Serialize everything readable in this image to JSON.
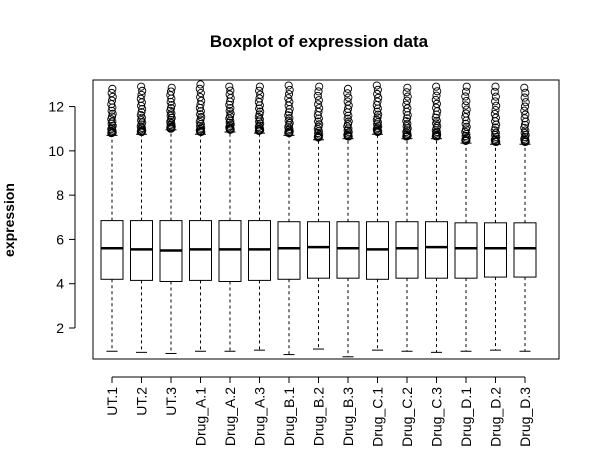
{
  "chart_data": {
    "type": "boxplot",
    "title": "Boxplot of expression data",
    "xlabel": "",
    "ylabel": "expression",
    "ylim": [
      0.6,
      13.2
    ],
    "yticks": [
      2,
      4,
      6,
      8,
      10,
      12
    ],
    "grid": false,
    "colors": {
      "box_fill": "#ffffff",
      "stroke": "#000000"
    },
    "categories": [
      "UT.1",
      "UT.2",
      "UT.3",
      "Drug_A.1",
      "Drug_A.2",
      "Drug_A.3",
      "Drug_B.1",
      "Drug_B.2",
      "Drug_B.3",
      "Drug_C.1",
      "Drug_C.2",
      "Drug_C.3",
      "Drug_D.1",
      "Drug_D.2",
      "Drug_D.3"
    ],
    "boxes": [
      {
        "min": 0.95,
        "q1": 4.2,
        "median": 5.6,
        "q3": 6.85,
        "whisker_high": 10.7,
        "outliers_low": 10.8,
        "outliers_high": 12.8
      },
      {
        "min": 0.9,
        "q1": 4.15,
        "median": 5.55,
        "q3": 6.85,
        "whisker_high": 10.75,
        "outliers_low": 10.85,
        "outliers_high": 12.9
      },
      {
        "min": 0.85,
        "q1": 4.1,
        "median": 5.5,
        "q3": 6.85,
        "whisker_high": 10.95,
        "outliers_low": 11.0,
        "outliers_high": 12.85
      },
      {
        "min": 0.95,
        "q1": 4.15,
        "median": 5.55,
        "q3": 6.85,
        "whisker_high": 10.75,
        "outliers_low": 10.85,
        "outliers_high": 13.0
      },
      {
        "min": 0.95,
        "q1": 4.1,
        "median": 5.55,
        "q3": 6.85,
        "whisker_high": 10.85,
        "outliers_low": 10.95,
        "outliers_high": 12.9
      },
      {
        "min": 1.0,
        "q1": 4.15,
        "median": 5.55,
        "q3": 6.85,
        "whisker_high": 10.8,
        "outliers_low": 10.9,
        "outliers_high": 12.9
      },
      {
        "min": 0.8,
        "q1": 4.2,
        "median": 5.6,
        "q3": 6.8,
        "whisker_high": 10.7,
        "outliers_low": 10.8,
        "outliers_high": 12.95
      },
      {
        "min": 1.05,
        "q1": 4.25,
        "median": 5.65,
        "q3": 6.8,
        "whisker_high": 10.5,
        "outliers_low": 10.6,
        "outliers_high": 12.9
      },
      {
        "min": 0.7,
        "q1": 4.25,
        "median": 5.6,
        "q3": 6.8,
        "whisker_high": 10.55,
        "outliers_low": 10.65,
        "outliers_high": 12.8
      },
      {
        "min": 1.0,
        "q1": 4.2,
        "median": 5.55,
        "q3": 6.8,
        "whisker_high": 10.75,
        "outliers_low": 10.85,
        "outliers_high": 12.95
      },
      {
        "min": 0.95,
        "q1": 4.25,
        "median": 5.6,
        "q3": 6.8,
        "whisker_high": 10.55,
        "outliers_low": 10.65,
        "outliers_high": 12.85
      },
      {
        "min": 0.9,
        "q1": 4.25,
        "median": 5.65,
        "q3": 6.8,
        "whisker_high": 10.55,
        "outliers_low": 10.65,
        "outliers_high": 12.9
      },
      {
        "min": 0.95,
        "q1": 4.25,
        "median": 5.6,
        "q3": 6.75,
        "whisker_high": 10.35,
        "outliers_low": 10.45,
        "outliers_high": 12.9
      },
      {
        "min": 1.0,
        "q1": 4.3,
        "median": 5.6,
        "q3": 6.75,
        "whisker_high": 10.3,
        "outliers_low": 10.4,
        "outliers_high": 12.9
      },
      {
        "min": 0.95,
        "q1": 4.3,
        "median": 5.6,
        "q3": 6.75,
        "whisker_high": 10.3,
        "outliers_low": 10.4,
        "outliers_high": 12.85
      }
    ]
  }
}
